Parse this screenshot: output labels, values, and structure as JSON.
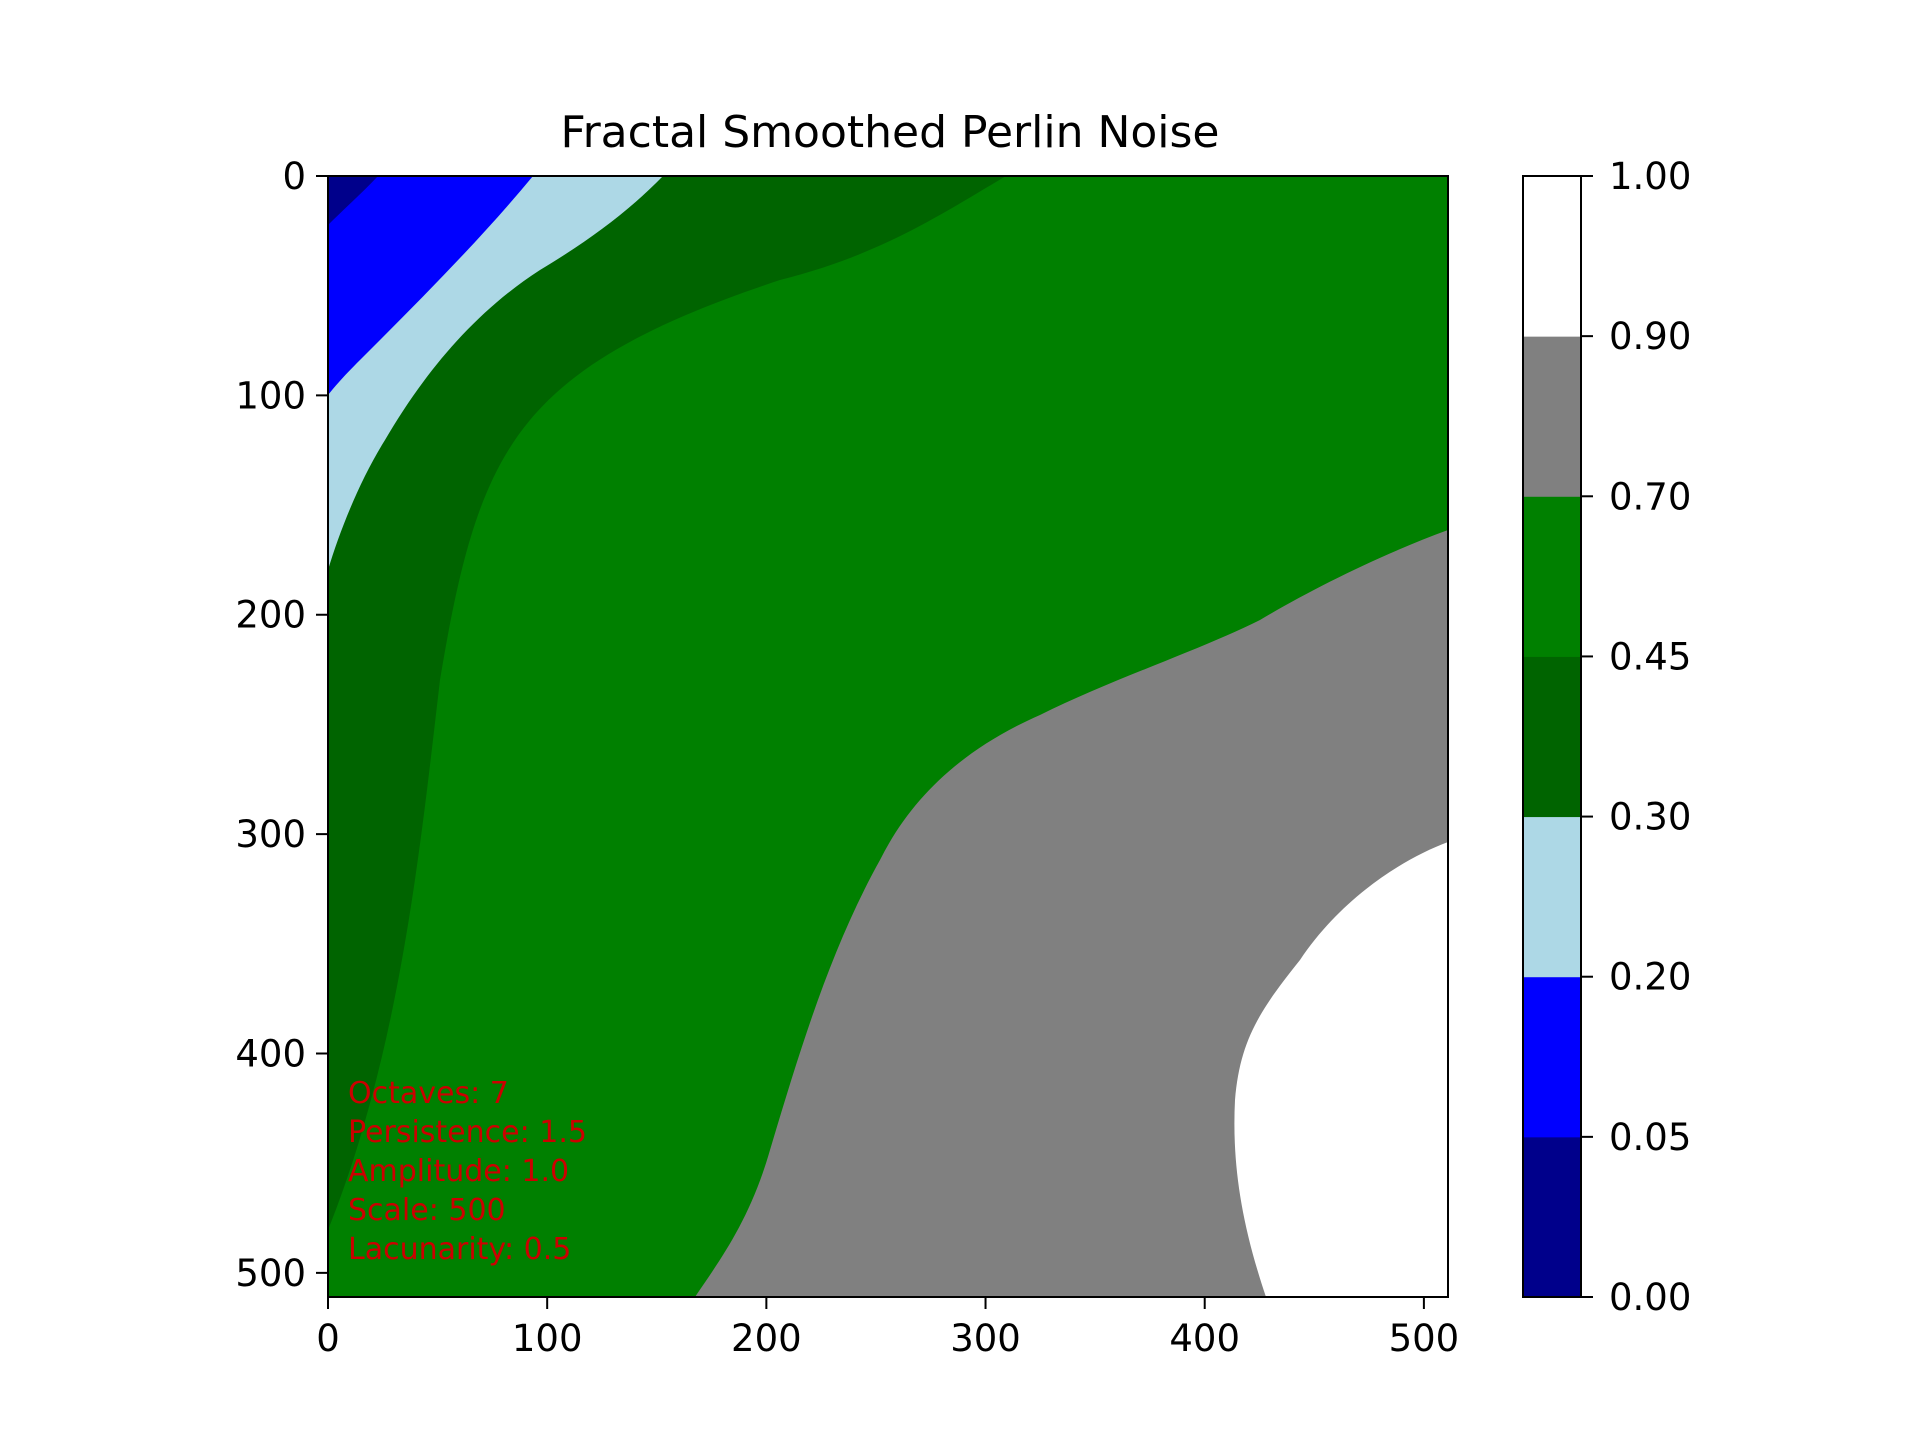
{
  "chart_data": {
    "type": "heatmap",
    "title": "Fractal Smoothed Perlin Noise",
    "xlabel": "",
    "ylabel": "",
    "xlim": [
      0,
      511
    ],
    "ylim": [
      511,
      0
    ],
    "x_ticks": [
      0,
      100,
      200,
      300,
      400,
      500
    ],
    "y_ticks": [
      0,
      100,
      200,
      300,
      400,
      500
    ],
    "grid": false,
    "colorbar": {
      "boundaries": [
        0.0,
        0.05,
        0.2,
        0.3,
        0.45,
        0.7,
        0.9,
        1.0
      ],
      "tick_labels": [
        "0.00",
        "0.05",
        "0.20",
        "0.30",
        "0.45",
        "0.70",
        "0.90",
        "1.00"
      ],
      "colors": [
        "#00008b",
        "#0000ff",
        "#add8e6",
        "#006400",
        "#008000",
        "#808080",
        "#ffffff"
      ]
    },
    "regions": [
      {
        "range": [
          0.0,
          0.05
        ],
        "color": "#00008b",
        "approx_extent": "top-left corner, x 0–25, y 0–20"
      },
      {
        "range": [
          0.05,
          0.2
        ],
        "color": "#0000ff",
        "approx_extent": "top-left, x 0–95, y 0–100"
      },
      {
        "range": [
          0.2,
          0.3
        ],
        "color": "#add8e6",
        "approx_extent": "diagonal band from (0,180) to (153,0)"
      },
      {
        "range": [
          0.3,
          0.45
        ],
        "color": "#006400",
        "approx_extent": "band from (0,485) to (310,0)"
      },
      {
        "range": [
          0.45,
          0.7
        ],
        "color": "#008000",
        "approx_extent": "central diagonal region"
      },
      {
        "range": [
          0.7,
          0.9
        ],
        "color": "#808080",
        "approx_extent": "lower right, bottom edge from x 168, right edge from y 163"
      },
      {
        "range": [
          0.9,
          1.0
        ],
        "color": "#ffffff",
        "approx_extent": "lower right corner, bottom edge from x 430, right edge from y 303"
      }
    ],
    "annotations": [
      "Octaves: 7",
      "Persistence: 1.5",
      "Amplitude: 1.0",
      "Scale: 500",
      "Lacunarity: 0.5"
    ],
    "annotation_color": "#cc0000"
  }
}
